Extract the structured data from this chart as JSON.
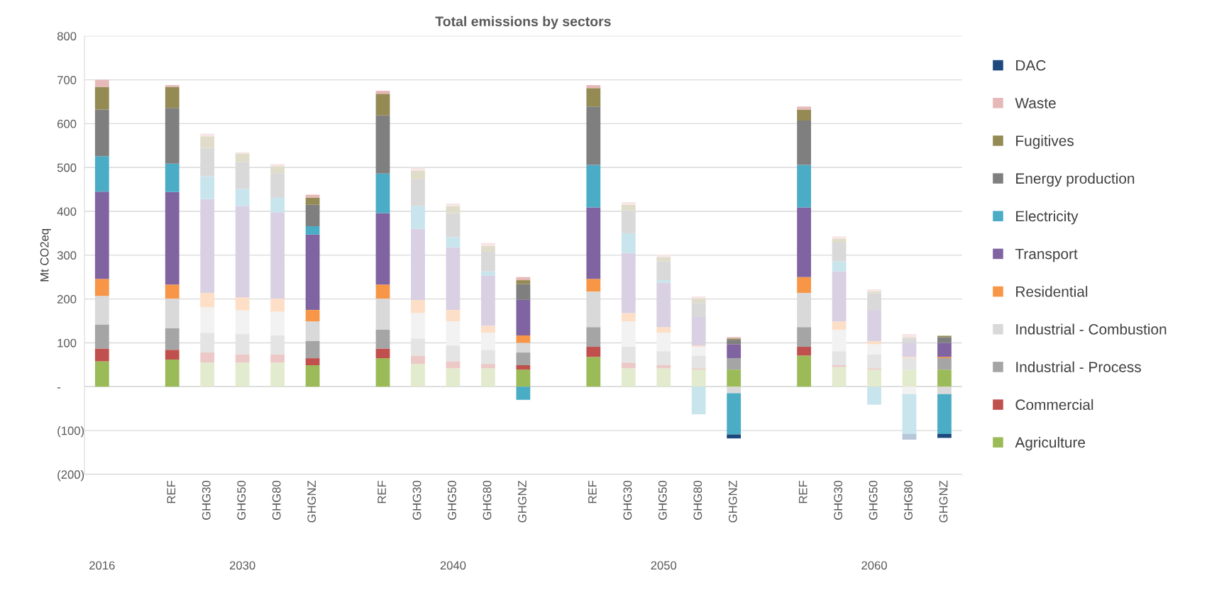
{
  "chart_data": {
    "type": "bar",
    "stacked": true,
    "title": "Total emissions by sectors",
    "ylabel": "Mt CO2eq",
    "categories": [
      null,
      null,
      "REF",
      "GHG30",
      "GHG50",
      "GHG80",
      "GHGNZ",
      null,
      "REF",
      "GHG30",
      "GHG50",
      "GHG80",
      "GHGNZ",
      null,
      "REF",
      "GHG30",
      "GHG50",
      "GHG80",
      "GHGNZ",
      null,
      "REF",
      "GHG30",
      "GHG50",
      "GHG80",
      "GHGNZ"
    ],
    "annotations": [
      "2016",
      "2030",
      "2040",
      "2050",
      "2060"
    ],
    "ylim": [
      -200,
      800
    ],
    "yticks": [
      {
        "value": -200,
        "label": "(200)"
      },
      {
        "value": -100,
        "label": "(100)"
      },
      {
        "value": 0,
        "label": "-"
      },
      100,
      200,
      300,
      400,
      500,
      600,
      700,
      800
    ],
    "grid": "y",
    "legend": "right",
    "series": [
      {
        "name": "Agriculture",
        "color": "#9bbb59",
        "colors": [
          "#9bbb59",
          null,
          "#9bbb59",
          "#e2ebcd",
          "#e2ebcd",
          "#e2ebcd",
          "#9bbb59",
          null,
          "#9bbb59",
          "#e2ebcd",
          "#e2ebcd",
          "#e2ebcd",
          "#9bbb59",
          null,
          "#9bbb59",
          "#e2ebcd",
          "#e2ebcd",
          "#e2ebcd",
          "#9bbb59",
          null,
          "#9bbb59",
          "#e2ebcd",
          "#e2ebcd",
          "#e2ebcd",
          "#9bbb59"
        ],
        "values": [
          58,
          null,
          62,
          55,
          55,
          55,
          49,
          null,
          65,
          52,
          42,
          42,
          39,
          null,
          68,
          42,
          42,
          39,
          39,
          null,
          71,
          45,
          39,
          39,
          39
        ]
      },
      {
        "name": "Commercial",
        "color": "#c0504d",
        "colors": [
          "#c0504d",
          null,
          "#c0504d",
          "#ecc8c7",
          "#ecc8c7",
          "#ecc8c7",
          "#c0504d",
          null,
          "#c0504d",
          "#ecc8c7",
          "#ecc8c7",
          "#ecc8c7",
          "#c0504d",
          null,
          "#c0504d",
          "#ecc8c7",
          "#ecc8c7",
          "#ecc8c7",
          "#c0504d",
          null,
          "#c0504d",
          "#ecc8c7",
          "#ecc8c7",
          "#ecc8c7",
          "#c0504d"
        ],
        "values": [
          29,
          null,
          22,
          23,
          19,
          19,
          16,
          null,
          22,
          19,
          16,
          10,
          10,
          null,
          23,
          13,
          7,
          3,
          null,
          null,
          20,
          4,
          3,
          null,
          null
        ]
      },
      {
        "name": "Industrial - Process",
        "color": "#a5a5a5",
        "colors": [
          "#a5a5a5",
          null,
          "#a5a5a5",
          "#e4e4e4",
          "#e4e4e4",
          "#e4e4e4",
          "#a5a5a5",
          null,
          "#a5a5a5",
          "#e4e4e4",
          "#e4e4e4",
          "#e4e4e4",
          "#a5a5a5",
          null,
          "#a5a5a5",
          "#e4e4e4",
          "#e4e4e4",
          "#e4e4e4",
          "#a5a5a5",
          null,
          "#a5a5a5",
          "#e4e4e4",
          "#e4e4e4",
          "#e4e4e4",
          "#a5a5a5"
        ],
        "values": [
          55,
          null,
          49,
          45,
          46,
          43,
          39,
          null,
          43,
          39,
          36,
          32,
          29,
          null,
          45,
          36,
          32,
          29,
          26,
          null,
          45,
          32,
          32,
          26,
          26
        ]
      },
      {
        "name": "Industrial - Combustion",
        "color": "#d9d9d9",
        "colors": [
          "#d9d9d9",
          null,
          "#d9d9d9",
          "#f2f2f2",
          "#f2f2f2",
          "#f2f2f2",
          "#d9d9d9",
          null,
          "#d9d9d9",
          "#f2f2f2",
          "#f2f2f2",
          "#f2f2f2",
          "#d9d9d9",
          null,
          "#d9d9d9",
          "#f2f2f2",
          "#f2f2f2",
          "#f2f2f2",
          "#d9d9d9",
          null,
          "#d9d9d9",
          "#f2f2f2",
          "#f2f2f2",
          "#f2f2f2",
          "#d9d9d9"
        ],
        "values": [
          65,
          null,
          68,
          58,
          54,
          54,
          45,
          null,
          71,
          58,
          55,
          39,
          22,
          null,
          81,
          58,
          42,
          20,
          -15,
          null,
          78,
          49,
          23,
          -17,
          -17
        ]
      },
      {
        "name": "Residential",
        "color": "#f79646",
        "colors": [
          "#f79646",
          null,
          "#f79646",
          "#fcdfc6",
          "#fcdfc6",
          "#fcdfc6",
          "#f79646",
          null,
          "#f79646",
          "#fcdfc6",
          "#fcdfc6",
          "#fcdfc6",
          "#f79646",
          null,
          "#f79646",
          "#fcdfc6",
          "#fcdfc6",
          "#fcdfc6",
          "#f79646",
          null,
          "#f79646",
          "#fcdfc6",
          "#fcdfc6",
          "#fcdfc6",
          "#f79646"
        ],
        "values": [
          39,
          null,
          32,
          33,
          30,
          30,
          26,
          null,
          32,
          30,
          26,
          16,
          17,
          null,
          29,
          19,
          13,
          3,
          null,
          null,
          36,
          19,
          7,
          3,
          3
        ]
      },
      {
        "name": "Transport",
        "color": "#8064a2",
        "colors": [
          "#8064a2",
          null,
          "#8064a2",
          "#d9d0e4",
          "#d9d0e4",
          "#d9d0e4",
          "#8064a2",
          null,
          "#8064a2",
          "#d9d0e4",
          "#d9d0e4",
          "#d9d0e4",
          "#8064a2",
          null,
          "#8064a2",
          "#d9d0e4",
          "#d9d0e4",
          "#d9d0e4",
          "#8064a2",
          null,
          "#8064a2",
          "#d9d0e4",
          "#d9d0e4",
          "#d9d0e4",
          "#8064a2"
        ],
        "values": [
          199,
          null,
          211,
          214,
          208,
          197,
          172,
          null,
          163,
          162,
          143,
          114,
          81,
          null,
          163,
          137,
          101,
          65,
          32,
          null,
          159,
          114,
          71,
          32,
          32
        ]
      },
      {
        "name": "Electricity",
        "color": "#4bacc6",
        "colors": [
          "#4bacc6",
          null,
          "#4bacc6",
          "#c8e4ed",
          "#c8e4ed",
          "#c8e4ed",
          "#4bacc6",
          null,
          "#4bacc6",
          "#c8e4ed",
          "#c8e4ed",
          "#c8e4ed",
          "#4bacc6",
          null,
          "#4bacc6",
          "#c8e4ed",
          "#c8e4ed",
          "#c8e4ed",
          "#4bacc6",
          null,
          "#4bacc6",
          "#c8e4ed",
          "#c8e4ed",
          "#c8e4ed",
          "#4bacc6"
        ],
        "values": [
          81,
          null,
          65,
          52,
          39,
          33,
          19,
          null,
          90,
          52,
          23,
          10,
          -30,
          null,
          97,
          45,
          6,
          -63,
          -94,
          null,
          97,
          23,
          -41,
          -91,
          -91
        ]
      },
      {
        "name": "Energy production",
        "color": "#7f7f7f",
        "colors": [
          "#7f7f7f",
          null,
          "#7f7f7f",
          "#d9d9d9",
          "#d9d9d9",
          "#d9d9d9",
          "#7f7f7f",
          null,
          "#7f7f7f",
          "#d9d9d9",
          "#d9d9d9",
          "#d9d9d9",
          "#7f7f7f",
          null,
          "#7f7f7f",
          "#d9d9d9",
          "#d9d9d9",
          "#d9d9d9",
          "#7f7f7f",
          null,
          "#7f7f7f",
          "#d9d9d9",
          "#d9d9d9",
          "#d9d9d9",
          "#7f7f7f"
        ],
        "values": [
          106,
          null,
          127,
          65,
          61,
          56,
          49,
          null,
          133,
          62,
          55,
          45,
          36,
          null,
          133,
          52,
          43,
          32,
          10,
          null,
          101,
          43,
          38,
          10,
          13
        ]
      },
      {
        "name": "Fugitives",
        "color": "#948a54",
        "colors": [
          "#948a54",
          null,
          "#948a54",
          "#dfdcc9",
          "#dfdcc9",
          "#dfdcc9",
          "#948a54",
          null,
          "#948a54",
          "#dfdcc9",
          "#dfdcc9",
          "#dfdcc9",
          "#948a54",
          null,
          "#948a54",
          "#dfdcc9",
          "#dfdcc9",
          "#dfdcc9",
          "#948a54",
          null,
          "#948a54",
          "#dfdcc9",
          "#dfdcc9",
          "#dfdcc9",
          "#948a54"
        ],
        "values": [
          52,
          null,
          48,
          26,
          20,
          16,
          16,
          null,
          49,
          19,
          16,
          13,
          9,
          null,
          42,
          13,
          9,
          10,
          3,
          null,
          25,
          8,
          4,
          3,
          3
        ]
      },
      {
        "name": "Waste",
        "color": "#e6b9b8",
        "colors": [
          "#e6b9b8",
          null,
          "#e6b9b8",
          "#f7e6e6",
          "#f7e6e6",
          "#f7e6e6",
          "#e6b9b8",
          null,
          "#e6b9b8",
          "#f7e6e6",
          "#f7e6e6",
          "#f7e6e6",
          "#e6b9b8",
          null,
          "#e6b9b8",
          "#f7e6e6",
          "#f7e6e6",
          "#f7e6e6",
          "#e6b9b8",
          null,
          "#e6b9b8",
          "#f7e6e6",
          "#f7e6e6",
          "#f7e6e6",
          "#e6b9b8"
        ],
        "values": [
          16,
          null,
          4,
          6,
          3,
          5,
          7,
          null,
          7,
          6,
          6,
          7,
          7,
          null,
          7,
          6,
          6,
          5,
          3,
          null,
          7,
          6,
          5,
          7,
          null
        ]
      },
      {
        "name": "DAC",
        "color": "#1f497d",
        "colors": [
          null,
          null,
          null,
          null,
          null,
          null,
          null,
          null,
          null,
          null,
          null,
          null,
          null,
          null,
          null,
          null,
          null,
          null,
          "#1f497d",
          null,
          null,
          null,
          null,
          "#b8c6d9",
          "#1f497d"
        ],
        "values": [
          null,
          null,
          null,
          null,
          null,
          null,
          null,
          null,
          null,
          null,
          null,
          null,
          null,
          null,
          null,
          null,
          null,
          null,
          -9,
          null,
          null,
          null,
          null,
          -13,
          -9
        ]
      }
    ]
  }
}
